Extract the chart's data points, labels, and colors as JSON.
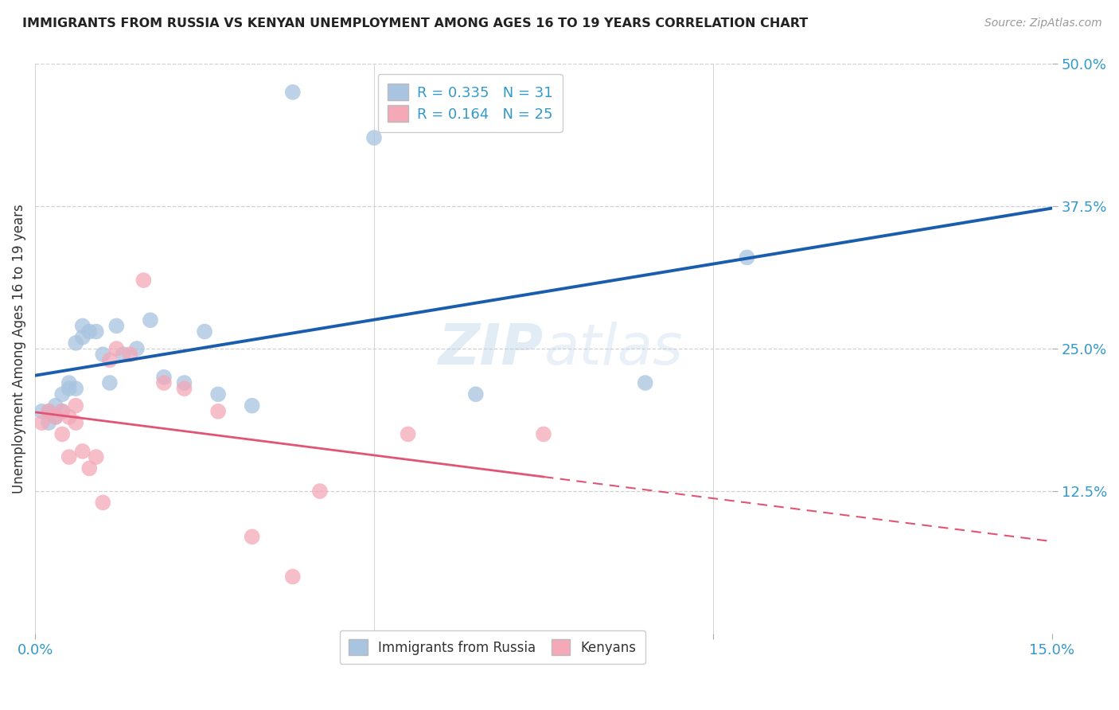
{
  "title": "IMMIGRANTS FROM RUSSIA VS KENYAN UNEMPLOYMENT AMONG AGES 16 TO 19 YEARS CORRELATION CHART",
  "source": "Source: ZipAtlas.com",
  "ylabel": "Unemployment Among Ages 16 to 19 years",
  "xlim": [
    0.0,
    0.15
  ],
  "ylim": [
    0.0,
    0.5
  ],
  "ytick_positions": [
    0.125,
    0.25,
    0.375,
    0.5
  ],
  "ytick_labels": [
    "12.5%",
    "25.0%",
    "37.5%",
    "50.0%"
  ],
  "blue_R": 0.335,
  "blue_N": 31,
  "pink_R": 0.164,
  "pink_N": 25,
  "blue_color": "#A8C4E0",
  "pink_color": "#F4A8B8",
  "blue_line_color": "#1A5DAD",
  "pink_line_color": "#E05575",
  "blue_scatter_x": [
    0.001,
    0.002,
    0.002,
    0.003,
    0.003,
    0.004,
    0.004,
    0.005,
    0.005,
    0.006,
    0.006,
    0.007,
    0.007,
    0.008,
    0.009,
    0.01,
    0.011,
    0.012,
    0.013,
    0.015,
    0.017,
    0.019,
    0.022,
    0.025,
    0.027,
    0.032,
    0.038,
    0.05,
    0.065,
    0.09,
    0.105
  ],
  "blue_scatter_y": [
    0.195,
    0.185,
    0.195,
    0.19,
    0.2,
    0.195,
    0.21,
    0.22,
    0.215,
    0.215,
    0.255,
    0.26,
    0.27,
    0.265,
    0.265,
    0.245,
    0.22,
    0.27,
    0.245,
    0.25,
    0.275,
    0.225,
    0.22,
    0.265,
    0.21,
    0.2,
    0.475,
    0.435,
    0.21,
    0.22,
    0.33
  ],
  "pink_scatter_x": [
    0.001,
    0.002,
    0.003,
    0.004,
    0.004,
    0.005,
    0.005,
    0.006,
    0.006,
    0.007,
    0.008,
    0.009,
    0.01,
    0.011,
    0.012,
    0.014,
    0.016,
    0.019,
    0.022,
    0.027,
    0.032,
    0.038,
    0.042,
    0.055,
    0.075
  ],
  "pink_scatter_y": [
    0.185,
    0.195,
    0.19,
    0.175,
    0.195,
    0.19,
    0.155,
    0.185,
    0.2,
    0.16,
    0.145,
    0.155,
    0.115,
    0.24,
    0.25,
    0.245,
    0.31,
    0.22,
    0.215,
    0.195,
    0.085,
    0.05,
    0.125,
    0.175,
    0.175
  ],
  "watermark": "ZIPatlas",
  "background_color": "#FFFFFF",
  "grid_color": "#CCCCCC"
}
